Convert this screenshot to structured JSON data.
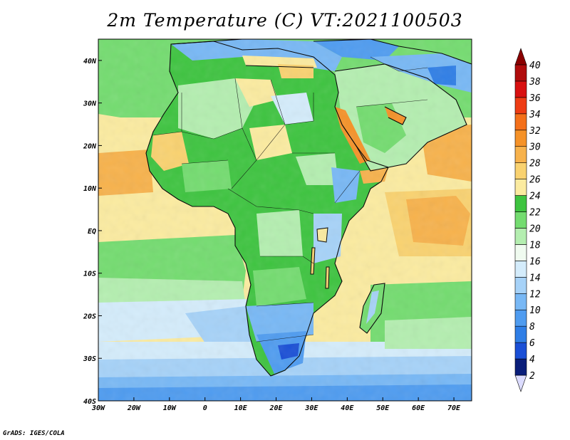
{
  "title": "2m Temperature (C) VT:2021100503",
  "credit": "GrADS: IGES/COLA",
  "map": {
    "lon_labels": [
      "30W",
      "20W",
      "10W",
      "0",
      "10E",
      "20E",
      "30E",
      "40E",
      "50E",
      "60E",
      "70E"
    ],
    "lat_labels": [
      "40N",
      "30N",
      "20N",
      "10N",
      "EQ",
      "10S",
      "20S",
      "30S",
      "40S"
    ],
    "lon_range": [
      -30,
      75
    ],
    "lat_range": [
      -40,
      45
    ]
  },
  "colorbar": {
    "levels": [
      "2",
      "4",
      "6",
      "8",
      "10",
      "12",
      "14",
      "16",
      "18",
      "20",
      "22",
      "24",
      "26",
      "28",
      "30",
      "32",
      "34",
      "36",
      "38",
      "40"
    ],
    "colors": [
      "#dcdcff",
      "#0a1e7a",
      "#1a4fd6",
      "#2f7ee6",
      "#4f9cf0",
      "#78b8f5",
      "#a6d2f8",
      "#d4ecfb",
      "#f0fbf0",
      "#b4eeb0",
      "#74dc70",
      "#3ec440",
      "#fbeba0",
      "#f9d270",
      "#f7b24c",
      "#f59228",
      "#f4701a",
      "#ee3c14",
      "#d81010",
      "#b00c0c",
      "#8a0000"
    ]
  }
}
